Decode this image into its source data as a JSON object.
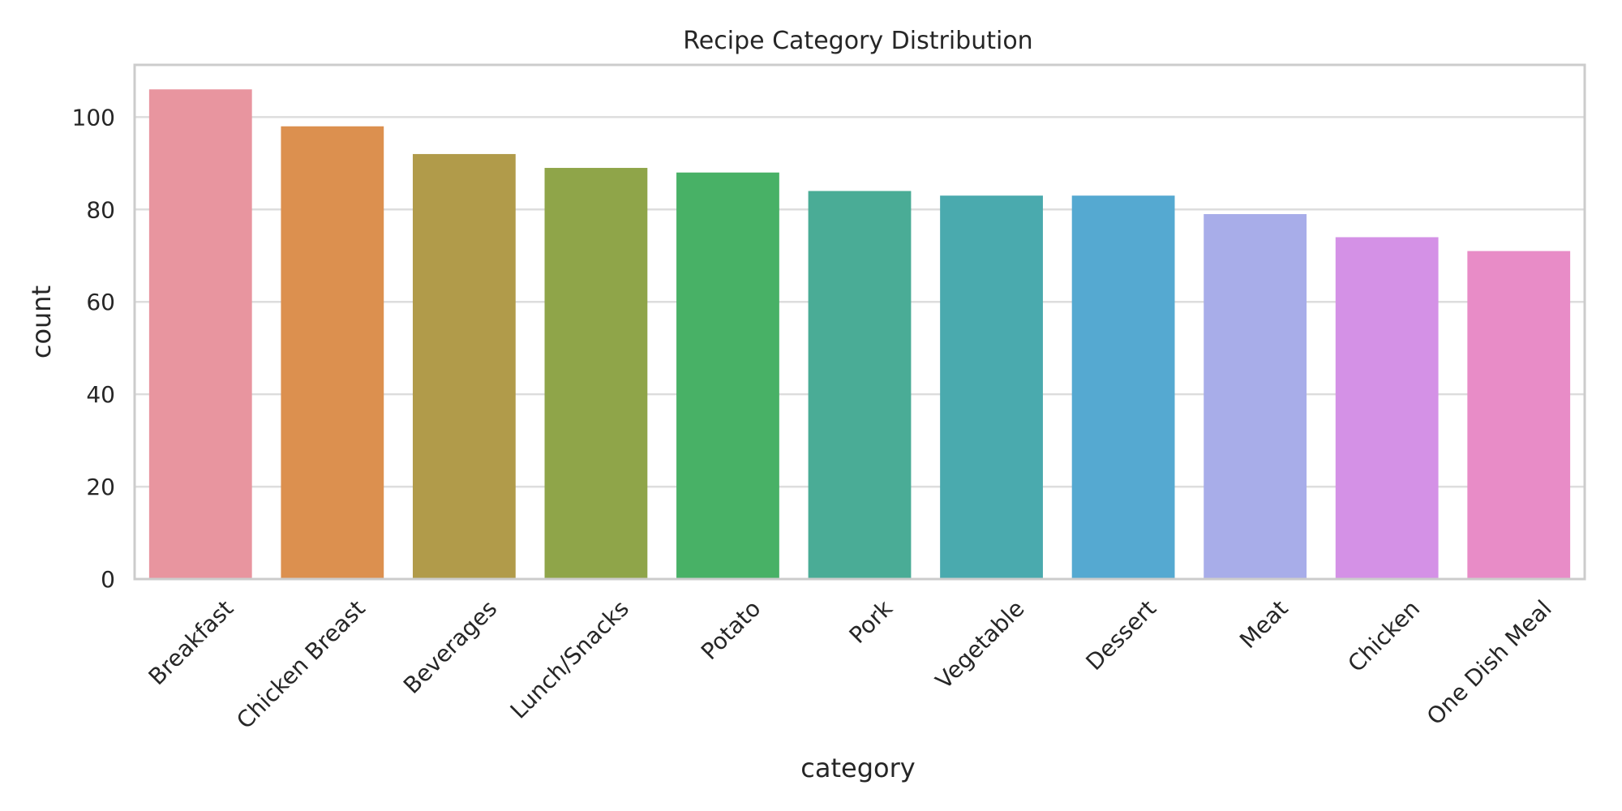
{
  "chart_data": {
    "type": "bar",
    "title": "Recipe Category Distribution",
    "xlabel": "category",
    "ylabel": "count",
    "ylim": [
      0,
      111.3
    ],
    "yticks": [
      "0",
      "20",
      "40",
      "60",
      "80",
      "100"
    ],
    "grid": true,
    "categories": [
      "Breakfast",
      "Chicken Breast",
      "Beverages",
      "Lunch/Snacks",
      "Potato",
      "Pork",
      "Vegetable",
      "Dessert",
      "Meat",
      "Chicken",
      "One Dish Meal"
    ],
    "values": [
      106,
      98,
      92,
      89,
      88,
      84,
      83,
      83,
      79,
      74,
      71
    ],
    "colors": [
      "#e8959f",
      "#dc904f",
      "#b19b4a",
      "#8fa549",
      "#48b166",
      "#4aac96",
      "#4aaaae",
      "#55a9d1",
      "#a8ade9",
      "#d491e6",
      "#e88cc7"
    ]
  }
}
